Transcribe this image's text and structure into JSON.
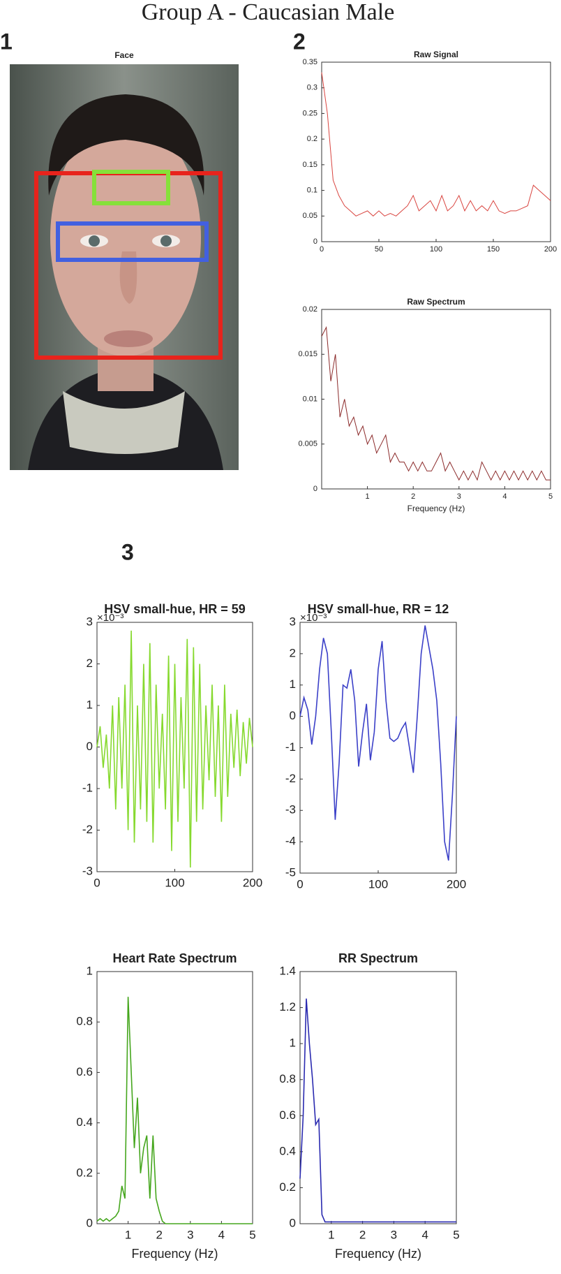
{
  "figure": {
    "title": "Group A - Caucasian Male",
    "panel_labels": [
      "1",
      "2",
      "3"
    ],
    "face_title": "Face"
  },
  "chart_data": [
    {
      "type": "line",
      "title": "Raw Signal",
      "color": "#d9443f",
      "x": [
        0,
        5,
        10,
        15,
        20,
        25,
        30,
        35,
        40,
        45,
        50,
        55,
        60,
        65,
        70,
        75,
        80,
        85,
        90,
        95,
        100,
        105,
        110,
        115,
        120,
        125,
        130,
        135,
        140,
        145,
        150,
        155,
        160,
        165,
        170,
        175,
        180,
        185,
        190,
        195,
        200
      ],
      "values": [
        0.33,
        0.25,
        0.12,
        0.09,
        0.07,
        0.06,
        0.05,
        0.055,
        0.06,
        0.05,
        0.06,
        0.05,
        0.055,
        0.05,
        0.06,
        0.07,
        0.09,
        0.06,
        0.07,
        0.08,
        0.06,
        0.09,
        0.06,
        0.07,
        0.09,
        0.06,
        0.08,
        0.06,
        0.07,
        0.06,
        0.08,
        0.06,
        0.055,
        0.06,
        0.06,
        0.065,
        0.07,
        0.11,
        0.1,
        0.09,
        0.08
      ],
      "xlim": [
        0,
        200
      ],
      "xticks": [
        0,
        50,
        100,
        150,
        200
      ],
      "ylim": [
        0,
        0.35
      ],
      "yticks": [
        0,
        0.05,
        0.1,
        0.15,
        0.2,
        0.25,
        0.3,
        0.35
      ]
    },
    {
      "type": "line",
      "title": "Raw Spectrum",
      "x_label": "Frequency (Hz)",
      "color": "#8b2a2a",
      "x": [
        0,
        0.1,
        0.2,
        0.3,
        0.4,
        0.5,
        0.6,
        0.7,
        0.8,
        0.9,
        1,
        1.1,
        1.2,
        1.3,
        1.4,
        1.5,
        1.6,
        1.7,
        1.8,
        1.9,
        2,
        2.1,
        2.2,
        2.3,
        2.4,
        2.5,
        2.6,
        2.7,
        2.8,
        2.9,
        3,
        3.1,
        3.2,
        3.3,
        3.4,
        3.5,
        3.6,
        3.7,
        3.8,
        3.9,
        4,
        4.1,
        4.2,
        4.3,
        4.4,
        4.5,
        4.6,
        4.7,
        4.8,
        4.9,
        5
      ],
      "values": [
        0.017,
        0.018,
        0.012,
        0.015,
        0.008,
        0.01,
        0.007,
        0.008,
        0.006,
        0.007,
        0.005,
        0.006,
        0.004,
        0.005,
        0.006,
        0.003,
        0.004,
        0.003,
        0.003,
        0.002,
        0.003,
        0.002,
        0.003,
        0.002,
        0.002,
        0.003,
        0.004,
        0.002,
        0.003,
        0.002,
        0.001,
        0.002,
        0.001,
        0.002,
        0.001,
        0.003,
        0.002,
        0.001,
        0.002,
        0.001,
        0.002,
        0.001,
        0.002,
        0.001,
        0.002,
        0.001,
        0.002,
        0.001,
        0.002,
        0.001,
        0.001
      ],
      "xlim": [
        0,
        5
      ],
      "xticks": [
        1,
        2,
        3,
        4,
        5
      ],
      "ylim": [
        0,
        0.02
      ],
      "yticks": [
        0,
        0.005,
        0.01,
        0.015,
        0.02
      ]
    },
    {
      "type": "line",
      "title": "HSV small-hue, HR = 59",
      "y_exponent_label": "×10⁻³",
      "color": "#86d92e",
      "x": [
        0,
        4,
        8,
        12,
        16,
        20,
        24,
        28,
        32,
        36,
        40,
        44,
        48,
        52,
        56,
        60,
        64,
        68,
        72,
        76,
        80,
        84,
        88,
        92,
        96,
        100,
        104,
        108,
        112,
        116,
        120,
        124,
        128,
        132,
        136,
        140,
        144,
        148,
        152,
        156,
        160,
        164,
        168,
        172,
        176,
        180,
        184,
        188,
        192,
        196,
        200
      ],
      "values": [
        0,
        0.5,
        -0.5,
        0.3,
        -1,
        1,
        -1.5,
        1.2,
        -1,
        1.5,
        -2,
        2.8,
        -2.3,
        1,
        -1.5,
        2,
        -1.8,
        2.5,
        -2.3,
        1.5,
        -1,
        0.8,
        -1.5,
        2.2,
        -2.5,
        2,
        -1.8,
        1.2,
        -1,
        2.6,
        -2.9,
        2.4,
        -1.8,
        2,
        -1.5,
        1,
        -0.8,
        1.5,
        -1.2,
        1,
        -1.8,
        1.5,
        -1.2,
        0.8,
        -0.5,
        0.9,
        -0.7,
        0.6,
        -0.4,
        0.7,
        0
      ],
      "xlim": [
        0,
        200
      ],
      "xticks": [
        0,
        100,
        200
      ],
      "ylim": [
        -3,
        3
      ],
      "yticks": [
        -3,
        -2,
        -1,
        0,
        1,
        2,
        3
      ]
    },
    {
      "type": "line",
      "title": "HSV small-hue, RR = 12",
      "y_exponent_label": "×10⁻³",
      "color": "#3b40c8",
      "x": [
        0,
        5,
        10,
        15,
        20,
        25,
        30,
        35,
        40,
        45,
        50,
        55,
        60,
        65,
        70,
        75,
        80,
        85,
        90,
        95,
        100,
        105,
        110,
        115,
        120,
        125,
        130,
        135,
        140,
        145,
        150,
        155,
        160,
        165,
        170,
        175,
        180,
        185,
        190,
        195,
        200
      ],
      "values": [
        0,
        0.6,
        0.2,
        -0.9,
        0,
        1.5,
        2.5,
        2,
        -0.5,
        -3.3,
        -1.5,
        1,
        0.9,
        1.5,
        0.5,
        -1.6,
        -0.5,
        0.4,
        -1.4,
        -0.5,
        1.5,
        2.4,
        0.5,
        -0.7,
        -0.8,
        -0.7,
        -0.4,
        -0.2,
        -1,
        -1.8,
        0,
        2,
        2.9,
        2.2,
        1.5,
        0.5,
        -1.5,
        -4,
        -4.6,
        -2.5,
        0
      ],
      "xlim": [
        0,
        200
      ],
      "xticks": [
        0,
        100,
        200
      ],
      "ylim": [
        -5,
        3
      ],
      "yticks": [
        -5,
        -4,
        -3,
        -2,
        -1,
        0,
        1,
        2,
        3
      ]
    },
    {
      "type": "line",
      "title": "Heart Rate Spectrum",
      "x_label": "Frequency (Hz)",
      "color": "#45a61d",
      "x": [
        0,
        0.1,
        0.2,
        0.3,
        0.4,
        0.5,
        0.6,
        0.7,
        0.8,
        0.9,
        1,
        1.1,
        1.2,
        1.3,
        1.4,
        1.5,
        1.6,
        1.7,
        1.8,
        1.9,
        2,
        2.1,
        2.2,
        2.3,
        2.4,
        2.5,
        2.6,
        2.7,
        2.8,
        2.9,
        3,
        3.1,
        3.2,
        3.3,
        3.4,
        3.5,
        3.6,
        3.7,
        3.8,
        3.9,
        4,
        4.1,
        4.2,
        4.3,
        4.4,
        4.5,
        4.6,
        4.7,
        4.8,
        4.9,
        5
      ],
      "values": [
        0.01,
        0.02,
        0.01,
        0.02,
        0.01,
        0.02,
        0.03,
        0.05,
        0.15,
        0.1,
        0.9,
        0.6,
        0.3,
        0.5,
        0.2,
        0.3,
        0.35,
        0.1,
        0.35,
        0.1,
        0.05,
        0.01,
        0,
        0,
        0,
        0,
        0,
        0,
        0,
        0,
        0,
        0,
        0,
        0,
        0,
        0,
        0,
        0,
        0,
        0,
        0,
        0,
        0,
        0,
        0,
        0,
        0,
        0,
        0,
        0,
        0
      ],
      "xlim": [
        0,
        5
      ],
      "xticks": [
        1,
        2,
        3,
        4,
        5
      ],
      "ylim": [
        0,
        1
      ],
      "yticks": [
        0,
        0.2,
        0.4,
        0.6,
        0.8,
        1
      ]
    },
    {
      "type": "line",
      "title": "RR Spectrum",
      "x_label": "Frequency (Hz)",
      "color": "#2a2ab0",
      "x": [
        0,
        0.1,
        0.2,
        0.3,
        0.4,
        0.5,
        0.6,
        0.7,
        0.8,
        0.9,
        1,
        1.1,
        1.2,
        1.3,
        1.4,
        1.5,
        1.6,
        1.7,
        1.8,
        1.9,
        2,
        2.1,
        2.2,
        2.3,
        2.4,
        2.5,
        2.6,
        2.7,
        2.8,
        2.9,
        3,
        3.1,
        3.2,
        3.3,
        3.4,
        3.5,
        3.6,
        3.7,
        3.8,
        3.9,
        4,
        4.1,
        4.2,
        4.3,
        4.4,
        4.5,
        4.6,
        4.7,
        4.8,
        4.9,
        5
      ],
      "values": [
        0.25,
        0.6,
        1.25,
        1,
        0.8,
        0.55,
        0.58,
        0.05,
        0.01,
        0.01,
        0.01,
        0.01,
        0.01,
        0.01,
        0.01,
        0.01,
        0.01,
        0.01,
        0.01,
        0.01,
        0.01,
        0.01,
        0.01,
        0.01,
        0.01,
        0.01,
        0.01,
        0.01,
        0.01,
        0.01,
        0.01,
        0.01,
        0.01,
        0.01,
        0.01,
        0.01,
        0.01,
        0.01,
        0.01,
        0.01,
        0.01,
        0.01,
        0.01,
        0.01,
        0.01,
        0.01,
        0.01,
        0.01,
        0.01,
        0.01,
        0.01
      ],
      "xlim": [
        0,
        5
      ],
      "xticks": [
        1,
        2,
        3,
        4,
        5
      ],
      "ylim": [
        0,
        1.4
      ],
      "yticks": [
        0,
        0.2,
        0.4,
        0.6,
        0.8,
        1,
        1.2,
        1.4
      ]
    }
  ]
}
